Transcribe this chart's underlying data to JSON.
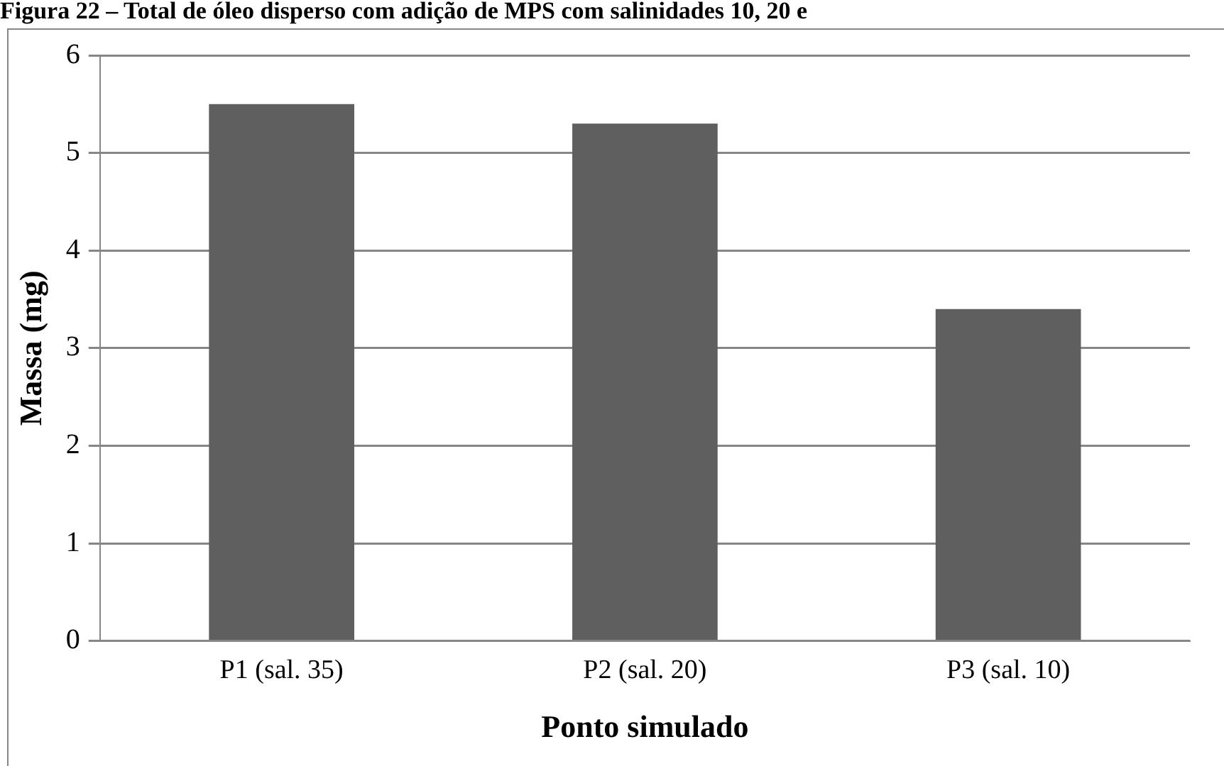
{
  "chart_data": {
    "type": "bar",
    "title": "Figura 22 – Total de óleo disperso com adição de MPS com salinidades 10, 20 e",
    "xlabel": "Ponto simulado",
    "ylabel": "Massa (mg)",
    "categories": [
      "P1 (sal. 35)",
      "P2 (sal. 20)",
      "P3 (sal. 10)"
    ],
    "values": [
      5.5,
      5.3,
      3.4
    ],
    "color": "#5f5f5f",
    "ylim": [
      0,
      6
    ],
    "yticks": [
      0,
      1,
      2,
      3,
      4,
      5,
      6
    ],
    "grid": "y"
  }
}
